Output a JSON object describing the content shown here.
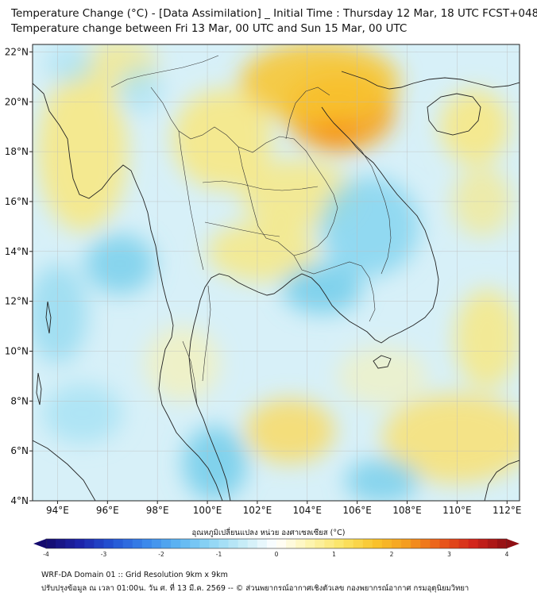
{
  "title_line1": "Temperature Change (°C) - [Data Assimilation] _ Initial Time : Thursday 12 Mar, 18 UTC FCST+048",
  "title_line2": "Temperature change between Fri 13 Mar, 00 UTC and Sun 15 Mar, 00 UTC",
  "map": {
    "lat_ticks": [
      "22°N",
      "20°N",
      "18°N",
      "16°N",
      "14°N",
      "12°N",
      "10°N",
      "8°N",
      "6°N",
      "4°N"
    ],
    "lon_ticks": [
      "94°E",
      "96°E",
      "98°E",
      "100°E",
      "102°E",
      "104°E",
      "106°E",
      "108°E",
      "110°E",
      "112°E"
    ],
    "lat_range": [
      4,
      22.3
    ],
    "lon_range": [
      93,
      112.5
    ],
    "blobs": [
      {
        "lon": 105.1,
        "lat": 18.9,
        "rx": 0.8,
        "ry": 0.8,
        "color": "#e8381d",
        "opacity": 0.95
      },
      {
        "lon": 105.3,
        "lat": 19.6,
        "rx": 2.2,
        "ry": 1.6,
        "color": "#f7a21f",
        "opacity": 0.9
      },
      {
        "lon": 104.5,
        "lat": 20.8,
        "rx": 3.2,
        "ry": 1.6,
        "color": "#f9c42c",
        "opacity": 0.85
      },
      {
        "lon": 100.6,
        "lat": 18.5,
        "rx": 2.0,
        "ry": 2.0,
        "color": "#fbe776",
        "opacity": 0.8
      },
      {
        "lon": 103.6,
        "lat": 16.3,
        "rx": 2.3,
        "ry": 1.4,
        "color": "#fbe776",
        "opacity": 0.75
      },
      {
        "lon": 102.2,
        "lat": 14.0,
        "rx": 2.2,
        "ry": 1.2,
        "color": "#fbe776",
        "opacity": 0.75
      },
      {
        "lon": 95.0,
        "lat": 18.0,
        "rx": 1.8,
        "ry": 3.2,
        "color": "#fbe776",
        "opacity": 0.8
      },
      {
        "lon": 96.5,
        "lat": 21.5,
        "rx": 1.5,
        "ry": 1.0,
        "color": "#fbe776",
        "opacity": 0.7
      },
      {
        "lon": 110.7,
        "lat": 19.0,
        "rx": 1.4,
        "ry": 1.5,
        "color": "#fbe776",
        "opacity": 0.8
      },
      {
        "lon": 111.0,
        "lat": 16.0,
        "rx": 1.2,
        "ry": 1.4,
        "color": "#fbe776",
        "opacity": 0.6
      },
      {
        "lon": 111.2,
        "lat": 10.5,
        "rx": 1.3,
        "ry": 2.0,
        "color": "#fbe776",
        "opacity": 0.75
      },
      {
        "lon": 110.0,
        "lat": 6.5,
        "rx": 3.0,
        "ry": 1.8,
        "color": "#fbe06a",
        "opacity": 0.8
      },
      {
        "lon": 103.3,
        "lat": 6.8,
        "rx": 1.8,
        "ry": 1.3,
        "color": "#fbd95c",
        "opacity": 0.8
      },
      {
        "lon": 99.0,
        "lat": 9.5,
        "rx": 1.5,
        "ry": 1.5,
        "color": "#fdf2a8",
        "opacity": 0.6
      },
      {
        "lon": 107.0,
        "lat": 9.0,
        "rx": 1.8,
        "ry": 1.2,
        "color": "#fdf2a8",
        "opacity": 0.5
      },
      {
        "lon": 106.5,
        "lat": 15.0,
        "rx": 2.0,
        "ry": 2.0,
        "color": "#7fd3ef",
        "opacity": 0.8
      },
      {
        "lon": 104.6,
        "lat": 12.5,
        "rx": 1.6,
        "ry": 1.0,
        "color": "#6ccbea",
        "opacity": 0.8
      },
      {
        "lon": 96.5,
        "lat": 13.5,
        "rx": 1.4,
        "ry": 1.2,
        "color": "#6ccbea",
        "opacity": 0.75
      },
      {
        "lon": 94.0,
        "lat": 11.5,
        "rx": 1.2,
        "ry": 2.0,
        "color": "#8ad7f0",
        "opacity": 0.7
      },
      {
        "lon": 95.0,
        "lat": 7.5,
        "rx": 1.6,
        "ry": 1.2,
        "color": "#9ee0f4",
        "opacity": 0.7
      },
      {
        "lon": 100.3,
        "lat": 5.5,
        "rx": 1.3,
        "ry": 1.5,
        "color": "#6ccbea",
        "opacity": 0.8
      },
      {
        "lon": 107.0,
        "lat": 4.8,
        "rx": 1.5,
        "ry": 0.9,
        "color": "#6ccbea",
        "opacity": 0.75
      },
      {
        "lon": 97.3,
        "lat": 20.5,
        "rx": 0.9,
        "ry": 1.0,
        "color": "#9ee0f4",
        "opacity": 0.6
      },
      {
        "lon": 94.5,
        "lat": 21.5,
        "rx": 1.0,
        "ry": 0.8,
        "color": "#9ee0f4",
        "opacity": 0.6
      }
    ]
  },
  "colorbar": {
    "title": "อุณหภูมิเปลี่ยนแปลง หน่วย องศาเซลเซียส (°C)",
    "min": -4,
    "max": 4,
    "tick_labels": [
      "-4",
      "-3",
      "-2",
      "-1",
      "0",
      "1",
      "2",
      "3",
      "4"
    ],
    "colors": [
      "#140a6e",
      "#1c22a8",
      "#2453d4",
      "#3a86ea",
      "#5cb4f2",
      "#8fd6f5",
      "#c7ecf7",
      "#ffffff",
      "#fdf4b0",
      "#fbe465",
      "#f9c42c",
      "#f49a1e",
      "#ea5a1a",
      "#d1241b",
      "#8f0f14"
    ]
  },
  "footer_line1": "WRF-DA Domain 01 :: Grid Resolution 9km x 9km",
  "footer_line2": "ปรับปรุงข้อมูล ณ เวลา 01:00น. วัน ศ. ที่ 13 มี.ค. 2569 -- © ส่วนพยากรณ์อากาศเชิงตัวเลข กองพยากรณ์อากาศ กรมอุตุนิยมวิทยา"
}
